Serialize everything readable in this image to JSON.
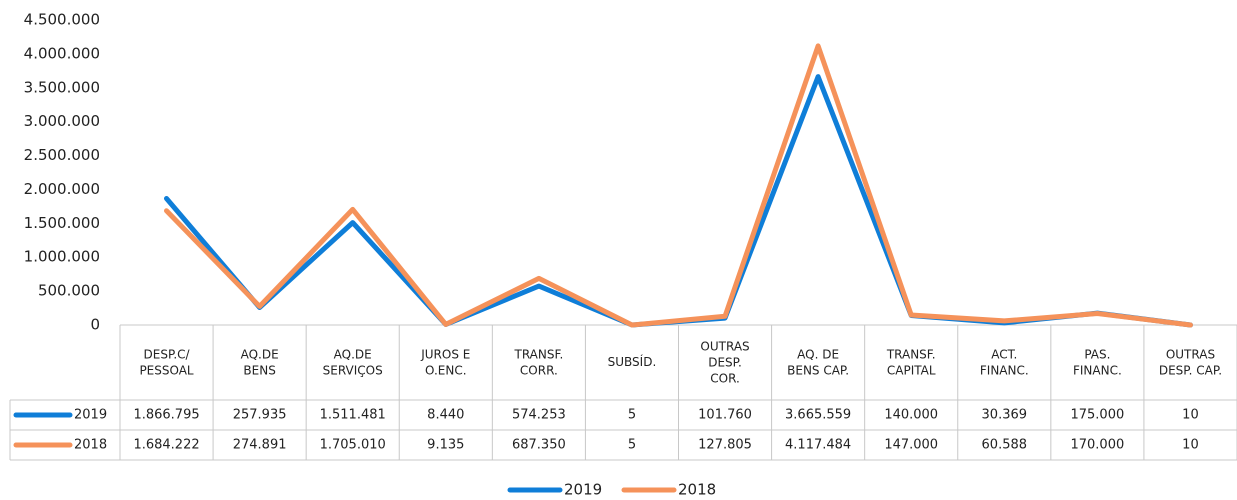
{
  "chart_data": {
    "type": "line",
    "categories": [
      "DESP.C/\nPESSOAL",
      "AQ.DE\nBENS",
      "AQ.DE\nSERVIÇOS",
      "JUROS E\nO.ENC.",
      "TRANSF.\nCORR.",
      "SUBSÍD.",
      "OUTRAS\nDESP.\nCOR.",
      "AQ. DE\nBENS CAP.",
      "TRANSF.\nCAPITAL",
      "ACT.\nFINANC.",
      "PAS.\nFINANC.",
      "OUTRAS\nDESP. CAP."
    ],
    "series": [
      {
        "name": "2019",
        "color": "#0f7ed8",
        "values": [
          1866795,
          257935,
          1511481,
          8440,
          574253,
          5,
          101760,
          3665559,
          140000,
          30369,
          175000,
          10
        ],
        "value_labels": [
          "1.866.795",
          "257.935",
          "1.511.481",
          "8.440",
          "574.253",
          "5",
          "101.760",
          "3.665.559",
          "140.000",
          "30.369",
          "175.000",
          "10"
        ]
      },
      {
        "name": "2018",
        "color": "#f5925a",
        "values": [
          1684222,
          274891,
          1705010,
          9135,
          687350,
          5,
          127805,
          4117484,
          147000,
          60588,
          170000,
          10
        ],
        "value_labels": [
          "1.684.222",
          "274.891",
          "1.705.010",
          "9.135",
          "687.350",
          "5",
          "127.805",
          "4.117.484",
          "147.000",
          "60.588",
          "170.000",
          "10"
        ]
      }
    ],
    "ylim": [
      0,
      4500000
    ],
    "yticks": [
      0,
      {
        "value": 500000,
        "label": "500.000"
      },
      {
        "value": 1000000,
        "label": "1.000.000"
      },
      {
        "value": 1500000,
        "label": "1.500.000"
      },
      {
        "value": 2000000,
        "label": "2.000.000"
      },
      {
        "value": 2500000,
        "label": "2.500.000"
      },
      {
        "value": 3000000,
        "label": "3.000.000"
      },
      {
        "value": 3500000,
        "label": "3.500.000"
      },
      {
        "value": 4000000,
        "label": "4.000.000"
      },
      {
        "value": 4500000,
        "label": "4.500.000"
      }
    ],
    "grid": false,
    "legend": "bottom"
  }
}
